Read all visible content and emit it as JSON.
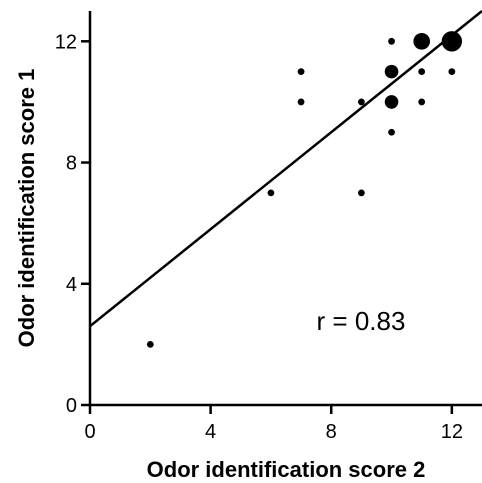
{
  "chart_data": {
    "type": "scatter",
    "xlabel": "Odor identification score 2",
    "ylabel": "Odor identification score 1",
    "xlim": [
      0,
      13
    ],
    "ylim": [
      0,
      13
    ],
    "xticks": [
      "0",
      "4",
      "8",
      "12"
    ],
    "xtick_values": [
      0,
      4,
      8,
      12
    ],
    "yticks": [
      "0",
      "4",
      "8",
      "12"
    ],
    "ytick_values": [
      0,
      4,
      8,
      12
    ],
    "grid": false,
    "annotation": "r = 0.83",
    "point_color": "#000000",
    "points": [
      {
        "x": 2,
        "y": 2,
        "count": 1
      },
      {
        "x": 6,
        "y": 7,
        "count": 1
      },
      {
        "x": 7,
        "y": 11,
        "count": 1
      },
      {
        "x": 7,
        "y": 10,
        "count": 1
      },
      {
        "x": 9,
        "y": 10,
        "count": 1
      },
      {
        "x": 9,
        "y": 7,
        "count": 1
      },
      {
        "x": 10,
        "y": 12,
        "count": 1
      },
      {
        "x": 10,
        "y": 11,
        "count": 4
      },
      {
        "x": 10,
        "y": 10,
        "count": 4
      },
      {
        "x": 10,
        "y": 9,
        "count": 1
      },
      {
        "x": 11,
        "y": 12,
        "count": 6
      },
      {
        "x": 11,
        "y": 11,
        "count": 1
      },
      {
        "x": 11,
        "y": 10,
        "count": 1
      },
      {
        "x": 12,
        "y": 12,
        "count": 9
      },
      {
        "x": 12,
        "y": 11,
        "count": 1
      }
    ],
    "regression": {
      "intercept": 2.6,
      "slope": 0.8,
      "x_start": 0,
      "x_end": 13
    }
  }
}
